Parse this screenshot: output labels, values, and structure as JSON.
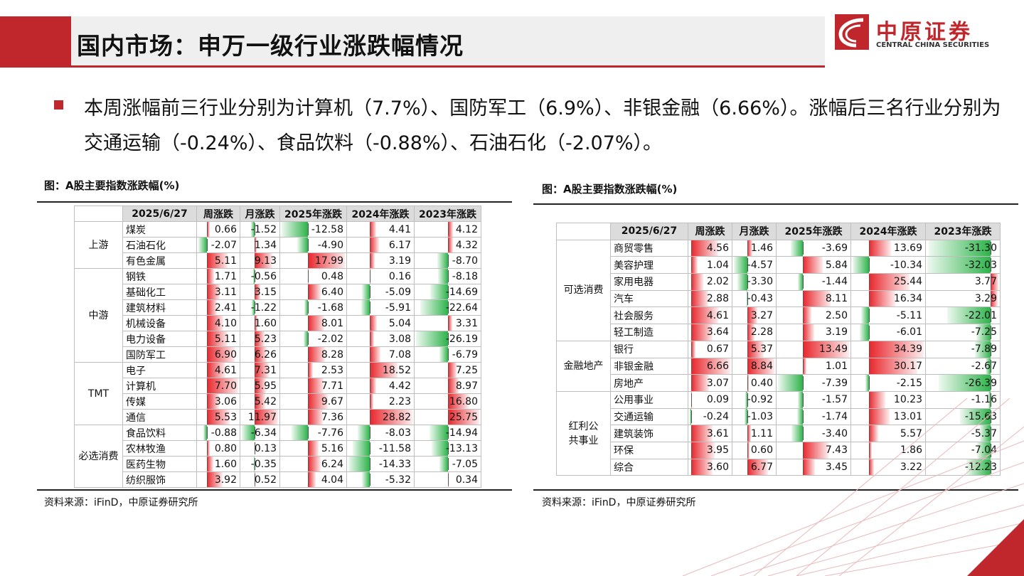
{
  "title": "国内市场：申万一级行业涨跌幅情况",
  "logo": {
    "cn": "中原证券",
    "en": "CENTRAL CHINA SECURITIES",
    "brand_color": "#c0272d"
  },
  "bullet": "本周涨幅前三行业分别为计算机（7.7%）、国防军工（6.9%）、非银金融（6.66%）。涨幅后三名行业分别为交通运输（-0.24%）、食品饮料（-0.88%）、石油石化（-2.07%）。",
  "left_table": {
    "caption": "图：A股主要指数涨跌幅(%)",
    "source": "资料来源：iFinD，中原证券研究所",
    "headers": [
      "2025/6/27",
      "周涨跌",
      "月涨跌",
      "2025年涨跌",
      "2024年涨跌",
      "2023年涨跌"
    ],
    "groups": [
      {
        "name": "上游",
        "rows": [
          {
            "name": "煤炭",
            "values": [
              0.66,
              -1.52,
              -12.58,
              4.41,
              4.12
            ]
          },
          {
            "name": "石油石化",
            "values": [
              -2.07,
              1.34,
              -4.9,
              6.17,
              4.32
            ]
          },
          {
            "name": "有色金属",
            "values": [
              5.11,
              9.13,
              17.99,
              3.19,
              -8.7
            ]
          }
        ]
      },
      {
        "name": "中游",
        "rows": [
          {
            "name": "钢铁",
            "values": [
              1.71,
              -0.56,
              0.48,
              0.16,
              -8.18
            ]
          },
          {
            "name": "基础化工",
            "values": [
              3.11,
              3.15,
              6.4,
              -5.09,
              -14.69
            ]
          },
          {
            "name": "建筑材料",
            "values": [
              2.41,
              -1.22,
              -1.68,
              -5.91,
              -22.64
            ]
          },
          {
            "name": "机械设备",
            "values": [
              4.1,
              1.6,
              8.01,
              5.04,
              3.31
            ]
          },
          {
            "name": "电力设备",
            "values": [
              5.11,
              5.23,
              -2.02,
              3.08,
              -26.19
            ]
          },
          {
            "name": "国防军工",
            "values": [
              6.9,
              6.26,
              8.28,
              7.08,
              -6.79
            ]
          }
        ]
      },
      {
        "name": "TMT",
        "rows": [
          {
            "name": "电子",
            "values": [
              4.61,
              7.31,
              2.53,
              18.52,
              7.25
            ]
          },
          {
            "name": "计算机",
            "values": [
              7.7,
              5.95,
              7.71,
              4.42,
              8.97
            ]
          },
          {
            "name": "传媒",
            "values": [
              3.06,
              5.42,
              9.67,
              2.23,
              16.8
            ]
          },
          {
            "name": "通信",
            "values": [
              5.53,
              11.97,
              7.36,
              28.82,
              25.75
            ]
          }
        ]
      },
      {
        "name": "必选消费",
        "rows": [
          {
            "name": "食品饮料",
            "values": [
              -0.88,
              -6.34,
              -7.76,
              -8.03,
              -14.94
            ]
          },
          {
            "name": "农林牧渔",
            "values": [
              0.8,
              0.13,
              5.16,
              -11.58,
              -13.13
            ]
          },
          {
            "name": "医药生物",
            "values": [
              1.6,
              -0.35,
              6.24,
              -14.33,
              -7.05
            ]
          },
          {
            "name": "纺织服饰",
            "values": [
              3.92,
              0.52,
              4.04,
              -5.32,
              0.34
            ]
          }
        ]
      }
    ]
  },
  "right_table": {
    "caption": "图：A股主要指数涨跌幅(%)",
    "source": "资料来源：iFinD，中原证券研究所",
    "headers": [
      "2025/6/27",
      "周涨跌",
      "月涨跌",
      "2025年涨跌",
      "2024年涨跌",
      "2023年涨跌"
    ],
    "groups": [
      {
        "name": "可选消费",
        "rows": [
          {
            "name": "商贸零售",
            "values": [
              4.56,
              1.46,
              -3.69,
              13.69,
              -31.3
            ]
          },
          {
            "name": "美容护理",
            "values": [
              1.04,
              -4.57,
              5.84,
              -10.34,
              -32.03
            ]
          },
          {
            "name": "家用电器",
            "values": [
              2.02,
              -3.3,
              -1.44,
              25.44,
              3.77
            ]
          },
          {
            "name": "汽车",
            "values": [
              2.88,
              -0.43,
              8.11,
              16.34,
              3.29
            ]
          },
          {
            "name": "社会服务",
            "values": [
              4.61,
              3.27,
              2.5,
              -5.11,
              -22.01
            ]
          },
          {
            "name": "轻工制造",
            "values": [
              3.64,
              2.28,
              3.19,
              -6.01,
              -7.25
            ]
          }
        ]
      },
      {
        "name": "金融地产",
        "rows": [
          {
            "name": "银行",
            "values": [
              0.67,
              5.37,
              13.49,
              34.39,
              -7.89
            ]
          },
          {
            "name": "非银金融",
            "values": [
              6.66,
              8.84,
              1.01,
              30.17,
              -2.67
            ]
          },
          {
            "name": "房地产",
            "values": [
              3.07,
              0.4,
              -7.39,
              -2.15,
              -26.39
            ]
          }
        ]
      },
      {
        "name": "红利公共事业",
        "rows": [
          {
            "name": "公用事业",
            "values": [
              0.09,
              -0.92,
              -1.57,
              10.23,
              -1.16
            ]
          },
          {
            "name": "交通运输",
            "values": [
              -0.24,
              -1.03,
              -1.74,
              13.01,
              -15.63
            ]
          },
          {
            "name": "建筑装饰",
            "values": [
              3.61,
              1.11,
              -3.4,
              5.57,
              -5.37
            ]
          },
          {
            "name": "环保",
            "values": [
              3.95,
              0.6,
              7.43,
              1.86,
              -7.04
            ]
          },
          {
            "name": "综合",
            "values": [
              3.6,
              6.77,
              3.45,
              3.22,
              -12.23
            ]
          }
        ]
      }
    ]
  }
}
